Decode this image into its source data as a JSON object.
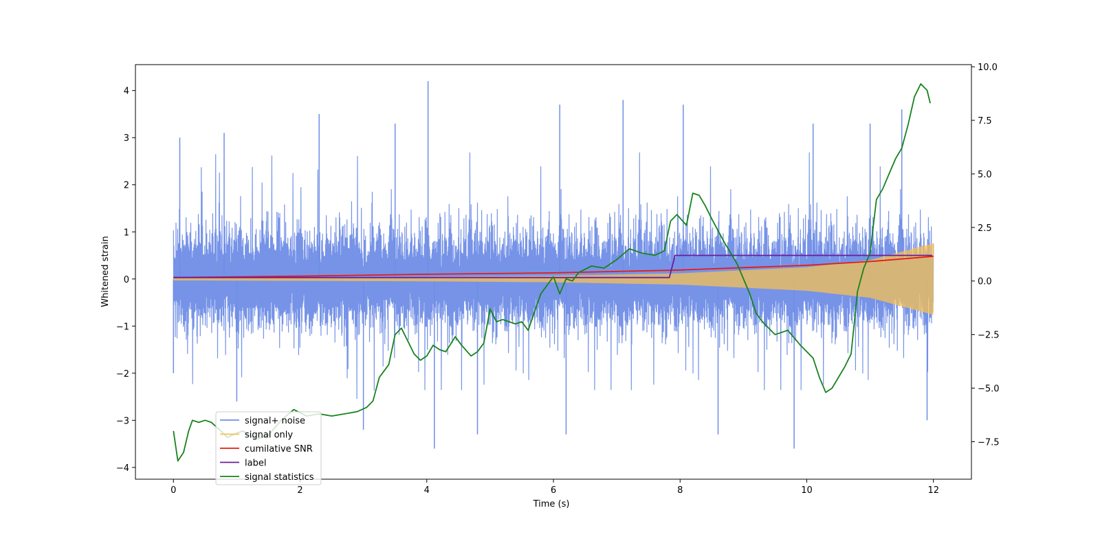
{
  "chart_data": {
    "type": "line",
    "xlabel": "Time (s)",
    "ylabel": "Whitened strain",
    "xlim": [
      -0.6,
      12.6
    ],
    "ylim": [
      -4.25,
      4.55
    ],
    "y2lim": [
      -9.25,
      10.1
    ],
    "x_ticks": [
      0,
      2,
      4,
      6,
      8,
      10,
      12
    ],
    "y_ticks": [
      -4,
      -3,
      -2,
      -1,
      0,
      1,
      2,
      3,
      4
    ],
    "y2_ticks": [
      -7.5,
      -5.0,
      -2.5,
      0.0,
      2.5,
      5.0,
      7.5,
      10.0
    ],
    "x_tick_labels": [
      "0",
      "2",
      "4",
      "6",
      "8",
      "10",
      "12"
    ],
    "y_tick_labels": [
      "−4",
      "−3",
      "−2",
      "−1",
      "0",
      "1",
      "2",
      "3",
      "4"
    ],
    "y2_tick_labels": [
      "−7.5",
      "−5.0",
      "−2.5",
      "0.0",
      "2.5",
      "5.0",
      "7.5",
      "10.0"
    ],
    "legend_position": "lower-left",
    "grid": false,
    "series": [
      {
        "name": "signal+ noise",
        "axis": "left",
        "color": "#6f8de6",
        "kind": "noise",
        "x_range": [
          0,
          12
        ],
        "typical_envelope": [
          -2.0,
          2.2
        ],
        "peaks_high": [
          [
            0.1,
            3.0
          ],
          [
            0.8,
            3.1
          ],
          [
            2.3,
            3.5
          ],
          [
            3.5,
            3.3
          ],
          [
            4.02,
            4.2
          ],
          [
            6.1,
            3.7
          ],
          [
            7.1,
            3.8
          ],
          [
            8.05,
            3.7
          ],
          [
            10.1,
            3.3
          ],
          [
            11.0,
            3.3
          ],
          [
            11.5,
            3.6
          ]
        ],
        "peaks_low": [
          [
            0.0,
            -2.0
          ],
          [
            1.0,
            -2.6
          ],
          [
            3.0,
            -3.2
          ],
          [
            4.12,
            -3.6
          ],
          [
            4.8,
            -3.3
          ],
          [
            6.2,
            -3.3
          ],
          [
            8.6,
            -3.3
          ],
          [
            9.8,
            -3.6
          ],
          [
            11.9,
            -3.0
          ]
        ]
      },
      {
        "name": "signal only",
        "axis": "left",
        "color": "#f7c054",
        "kind": "chirp",
        "x": [
          0,
          2,
          4,
          6,
          8,
          10,
          11,
          12
        ],
        "amplitude": [
          0.03,
          0.04,
          0.05,
          0.07,
          0.12,
          0.25,
          0.4,
          0.76
        ]
      },
      {
        "name": "cumilative SNR",
        "axis": "left",
        "color": "#e8190f",
        "x": [
          0,
          2,
          4,
          6,
          8,
          9,
          10,
          11,
          12
        ],
        "y": [
          0.03,
          0.06,
          0.1,
          0.13,
          0.19,
          0.24,
          0.29,
          0.37,
          0.48
        ]
      },
      {
        "name": "label",
        "axis": "left",
        "color": "#6a1b9a",
        "kind": "step",
        "x": [
          0,
          7.83,
          7.92,
          11.98
        ],
        "y": [
          0.03,
          0.03,
          0.5,
          0.5
        ]
      },
      {
        "name": "signal statistics",
        "axis": "right",
        "color": "#16821b",
        "x": [
          0,
          0.07,
          0.16,
          0.24,
          0.3,
          0.4,
          0.5,
          0.6,
          0.75,
          0.85,
          1.0,
          1.1,
          1.3,
          1.5,
          1.7,
          1.9,
          2.1,
          2.3,
          2.5,
          2.7,
          2.9,
          3.05,
          3.15,
          3.25,
          3.3,
          3.4,
          3.5,
          3.6,
          3.7,
          3.8,
          3.9,
          4.0,
          4.1,
          4.2,
          4.3,
          4.45,
          4.55,
          4.7,
          4.8,
          4.9,
          5.0,
          5.1,
          5.2,
          5.3,
          5.4,
          5.5,
          5.6,
          5.8,
          6.0,
          6.1,
          6.2,
          6.3,
          6.4,
          6.6,
          6.8,
          7.0,
          7.2,
          7.4,
          7.6,
          7.75,
          7.85,
          7.95,
          8.1,
          8.2,
          8.3,
          8.4,
          8.5,
          8.7,
          8.9,
          9.1,
          9.2,
          9.3,
          9.5,
          9.7,
          9.9,
          10.1,
          10.2,
          10.3,
          10.4,
          10.5,
          10.6,
          10.7,
          10.8,
          10.9,
          11.0,
          11.1,
          11.2,
          11.3,
          11.4,
          11.5,
          11.6,
          11.7,
          11.8,
          11.9,
          11.95
        ],
        "y": [
          -7.0,
          -8.4,
          -8.0,
          -7.0,
          -6.5,
          -6.6,
          -6.5,
          -6.6,
          -7.0,
          -7.3,
          -7.1,
          -7.0,
          -7.4,
          -7.2,
          -6.5,
          -6.0,
          -6.3,
          -6.2,
          -6.3,
          -6.2,
          -6.1,
          -5.9,
          -5.6,
          -4.5,
          -4.3,
          -3.9,
          -2.5,
          -2.2,
          -2.8,
          -3.4,
          -3.7,
          -3.5,
          -3.0,
          -3.2,
          -3.3,
          -2.6,
          -3.0,
          -3.5,
          -3.3,
          -2.9,
          -1.3,
          -1.9,
          -1.8,
          -1.9,
          -2.0,
          -1.9,
          -2.3,
          -0.6,
          0.2,
          -0.6,
          0.1,
          0.0,
          0.4,
          0.7,
          0.6,
          1.0,
          1.5,
          1.3,
          1.2,
          1.4,
          2.8,
          3.1,
          2.6,
          4.1,
          4.0,
          3.5,
          2.9,
          1.8,
          0.8,
          -0.6,
          -1.5,
          -1.9,
          -2.5,
          -2.3,
          -3.0,
          -3.6,
          -4.5,
          -5.2,
          -5.0,
          -4.5,
          -4.0,
          -3.4,
          -0.5,
          0.6,
          1.3,
          3.8,
          4.3,
          5.0,
          5.7,
          6.2,
          7.3,
          8.6,
          9.2,
          8.9,
          8.3
        ]
      }
    ]
  }
}
